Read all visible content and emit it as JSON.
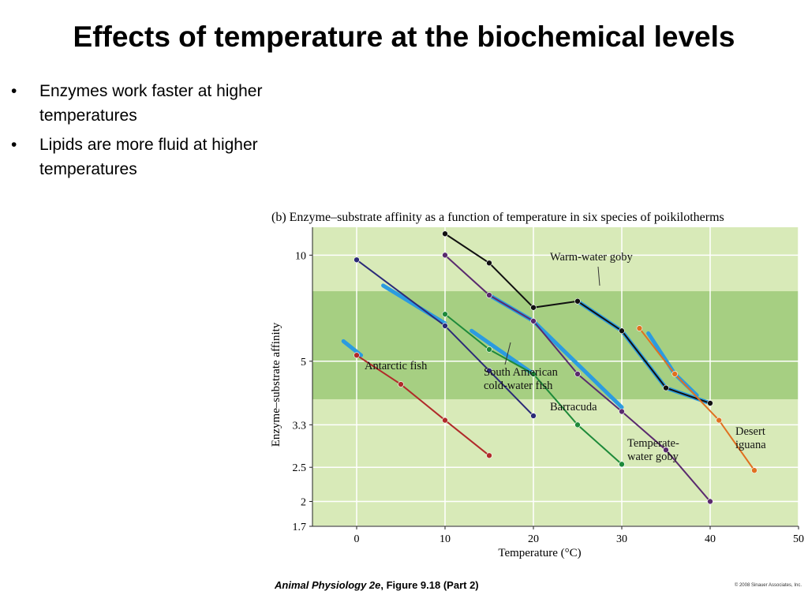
{
  "slide": {
    "title": "Effects of temperature at the biochemical levels",
    "bullets": [
      {
        "mark": "•",
        "text": "Enzymes work faster at higher temperatures"
      },
      {
        "mark": "•",
        "text": "Lipids are more fluid at higher temperatures"
      }
    ]
  },
  "figure": {
    "panel": "(b)",
    "caption": "Enzyme–substrate affinity as a function of temperature in six species of poikilotherms",
    "source_title": "Animal Physiology 2e",
    "source_rest": ", Figure 9.18 (Part 2)",
    "copyright": "© 2008 Sinauer Associates, Inc.",
    "colors": {
      "plot_bg": "#d8eab8",
      "band": "#a6cf82",
      "grid": "#ffffff",
      "highlight": "#2b9be0"
    }
  },
  "chart_data": {
    "type": "line",
    "xlabel": "Temperature (°C)",
    "ylabel": "Enzyme–substrate affinity",
    "xlim": [
      -5,
      50
    ],
    "ylim": [
      1.7,
      12
    ],
    "y_scale": "log",
    "x_ticks": [
      "0",
      "10",
      "20",
      "30",
      "40",
      "50"
    ],
    "x_tick_values": [
      0,
      10,
      20,
      30,
      40,
      50
    ],
    "y_ticks": [
      "1.7",
      "2",
      "2.5",
      "3.3",
      "5",
      "10"
    ],
    "y_tick_values": [
      1.7,
      2,
      2.5,
      3.3,
      5,
      10
    ],
    "grid": true,
    "band": {
      "y_range": [
        3.9,
        7.9
      ]
    },
    "series": [
      {
        "name": "Antarctic fish",
        "label_lines": [
          "Antarctic fish"
        ],
        "color": "#b02a2a",
        "x": [
          0,
          5,
          10,
          15
        ],
        "y": [
          5.2,
          4.3,
          3.4,
          2.7
        ],
        "highlight": [
          [
            -1.5,
            5.7
          ],
          [
            0.5,
            5.2
          ]
        ]
      },
      {
        "name": "South American cold-water fish",
        "label_lines": [
          "South American",
          "cold-water fish"
        ],
        "color": "#2b2a78",
        "x": [
          0,
          10,
          15,
          20
        ],
        "y": [
          9.7,
          6.3,
          4.7,
          3.5
        ],
        "highlight": [
          [
            3,
            8.2
          ],
          [
            10,
            6.4
          ]
        ]
      },
      {
        "name": "Barracuda",
        "label_lines": [
          "Barracuda"
        ],
        "color": "#1e8a3a",
        "x": [
          10,
          15,
          20,
          25,
          30
        ],
        "y": [
          6.8,
          5.4,
          4.6,
          3.3,
          2.55
        ],
        "highlight": [
          [
            13,
            6.1
          ],
          [
            20,
            4.6
          ]
        ]
      },
      {
        "name": "Temperate-water goby",
        "label_lines": [
          "Temperate-",
          "water goby"
        ],
        "color": "#5a2a6e",
        "x": [
          10,
          15,
          20,
          25,
          30,
          35,
          40
        ],
        "y": [
          10,
          7.7,
          6.5,
          4.6,
          3.6,
          2.8,
          2.0
        ],
        "highlight": [
          [
            15,
            7.7
          ],
          [
            20,
            6.5
          ],
          [
            30,
            3.7
          ]
        ]
      },
      {
        "name": "Warm-water goby",
        "label_lines": [
          "Warm-water goby"
        ],
        "color": "#111111",
        "x": [
          10,
          15,
          20,
          25,
          30,
          35,
          40
        ],
        "y": [
          11.5,
          9.5,
          7.1,
          7.4,
          6.1,
          4.2,
          3.8
        ],
        "highlight": [
          [
            25,
            7.4
          ],
          [
            30,
            6.1
          ],
          [
            35,
            4.2
          ],
          [
            40,
            3.8
          ]
        ]
      },
      {
        "name": "Desert iguana",
        "label_lines": [
          "Desert",
          "iguana"
        ],
        "color": "#e07020",
        "x": [
          32,
          36,
          41,
          45
        ],
        "y": [
          6.2,
          4.6,
          3.4,
          2.45
        ],
        "highlight": [
          [
            33,
            6.0
          ],
          [
            36,
            4.6
          ],
          [
            38.5,
            4.0
          ]
        ]
      }
    ]
  }
}
